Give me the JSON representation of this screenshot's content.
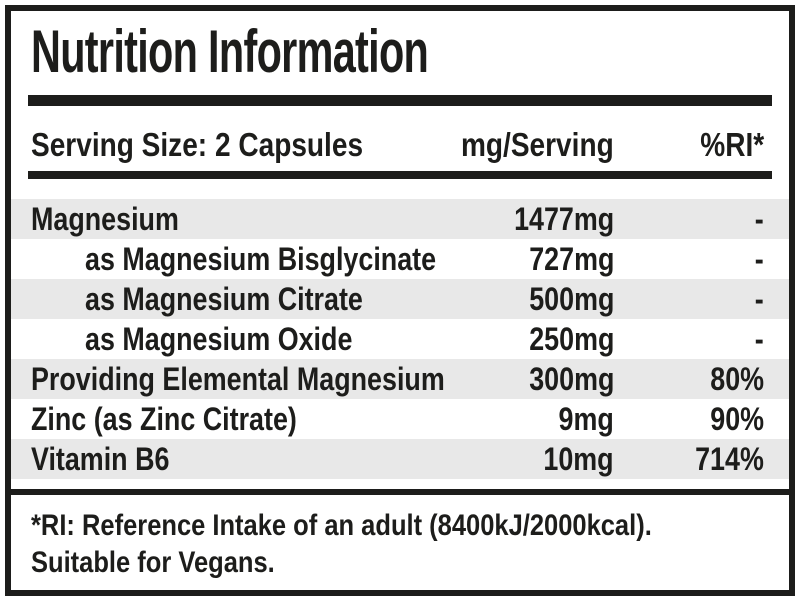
{
  "panel": {
    "title": "Nutrition Information",
    "colors": {
      "border_black": "#1d1d1b",
      "shaded_row": "#e8e8e8",
      "background": "#ffffff"
    }
  },
  "table": {
    "header": {
      "serving_size": "Serving Size: 2 Capsules",
      "amount_col": "mg/Serving",
      "ri_col": "%RI*"
    },
    "rows": [
      {
        "name": "Magnesium",
        "amount": "1477mg",
        "ri": "-"
      },
      {
        "name": "as Magnesium Bisglycinate",
        "amount": "727mg",
        "ri": "-"
      },
      {
        "name": "as Magnesium Citrate",
        "amount": "500mg",
        "ri": "-"
      },
      {
        "name": "as Magnesium Oxide",
        "amount": "250mg",
        "ri": "-"
      },
      {
        "name": "Providing Elemental Magnesium",
        "amount": "300mg",
        "ri": "80%"
      },
      {
        "name": "Zinc (as Zinc Citrate)",
        "amount": "9mg",
        "ri": "90%"
      },
      {
        "name": "Vitamin B6",
        "amount": "10mg",
        "ri": "714%"
      }
    ]
  },
  "footnote": {
    "line1": "*RI: Reference Intake of an adult (8400kJ/2000kcal).",
    "line2": "Suitable for Vegans."
  }
}
